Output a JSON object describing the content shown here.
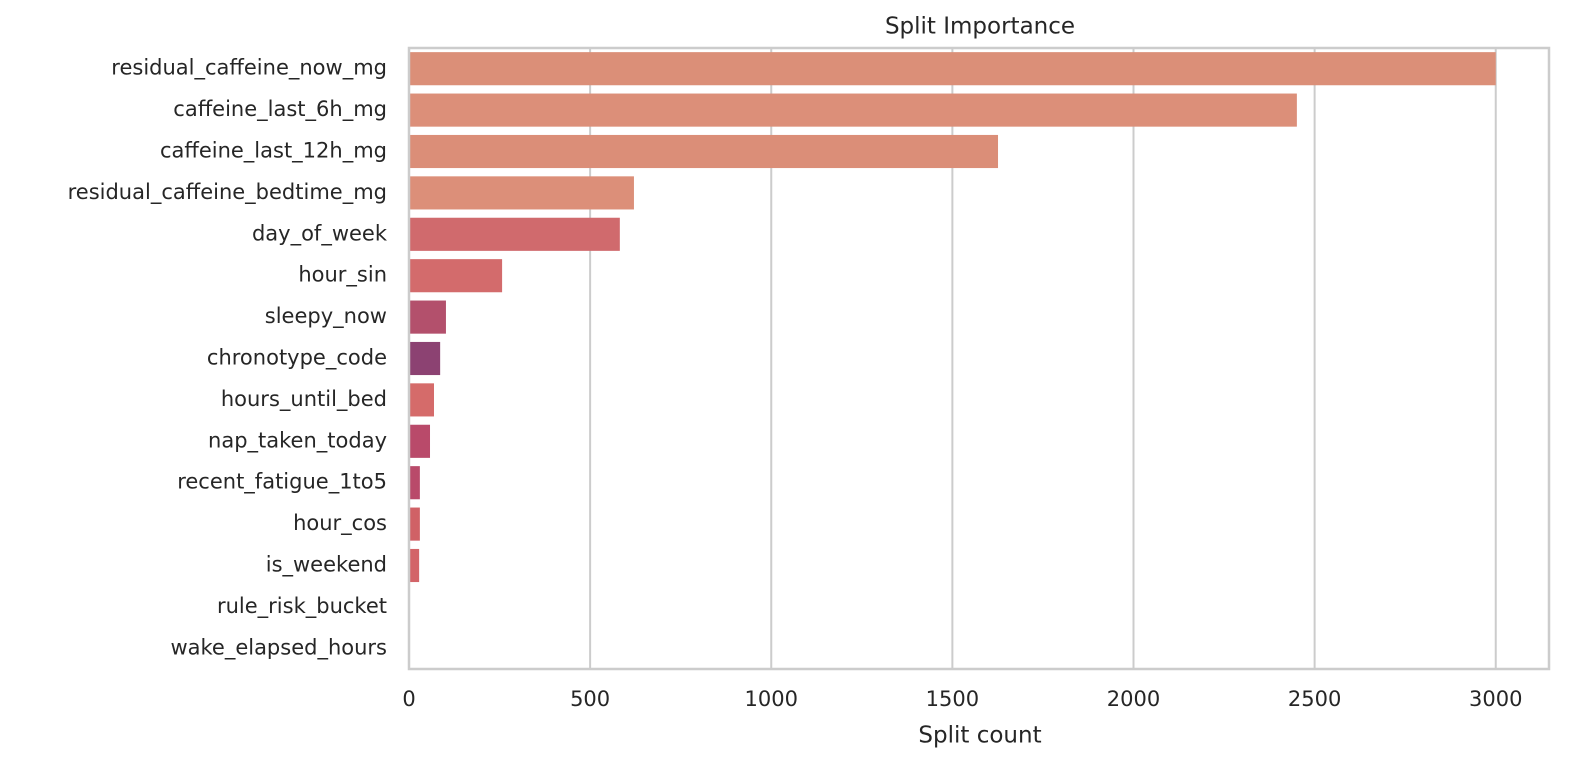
{
  "chart_data": {
    "type": "bar",
    "orientation": "horizontal",
    "title": "Split Importance",
    "xlabel": "Split count",
    "categories": [
      "residual_caffeine_now_mg",
      "caffeine_last_6h_mg",
      "caffeine_last_12h_mg",
      "residual_caffeine_bedtime_mg",
      "day_of_week",
      "hour_sin",
      "sleepy_now",
      "chronotype_code",
      "hours_until_bed",
      "nap_taken_today",
      "recent_fatigue_1to5",
      "hour_cos",
      "is_weekend",
      "rule_risk_bucket",
      "wake_elapsed_hours"
    ],
    "values": [
      3000,
      2451,
      1626,
      621,
      582,
      257,
      102,
      86,
      69,
      58,
      30,
      30,
      28,
      0,
      0
    ],
    "colors": [
      "#db8f78",
      "#dc8f79",
      "#db8e78",
      "#dc8f79",
      "#d06a6d",
      "#d36b6c",
      "#b3506c",
      "#8c4272",
      "#d56b6a",
      "#b94a6a",
      "#b94a6a",
      "#d06166",
      "#d36468",
      "#d06a6d",
      "#d06a6d"
    ],
    "xlim": [
      0,
      3147
    ],
    "xticks": [
      0,
      500,
      1000,
      1500,
      2000,
      2500,
      3000
    ],
    "grid": true
  }
}
